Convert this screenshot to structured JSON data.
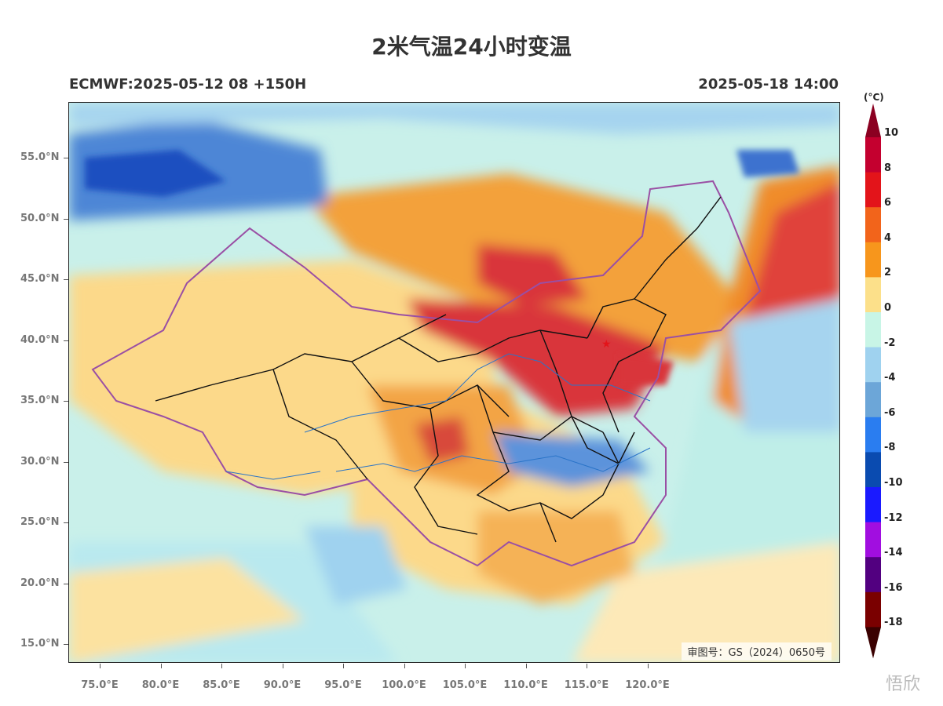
{
  "title": "2米气温24小时变温",
  "subtitle_left": "ECMWF:2025-05-12 08 +150H",
  "subtitle_right": "2025-05-18 14:00",
  "approval_number": "审图号：GS（2024）0650号",
  "watermark": "悟欣",
  "lat_labels": [
    "55.0°N",
    "50.0°N",
    "45.0°N",
    "40.0°N",
    "35.0°N",
    "30.0°N",
    "25.0°N",
    "20.0°N",
    "15.0°N"
  ],
  "lon_labels": [
    "75.0°E",
    "80.0°E",
    "85.0°E",
    "90.0°E",
    "95.0°E",
    "100.0°E",
    "105.0°E",
    "110.0°E",
    "115.0°E",
    "120.0°E"
  ],
  "colorbar": {
    "unit": "(°C)",
    "labels": [
      "10",
      "8",
      "6",
      "4",
      "2",
      "0",
      "-2",
      "-4",
      "-6",
      "-8",
      "-10",
      "-12",
      "-14",
      "-16",
      "-18"
    ],
    "colors": [
      "#8b0021",
      "#c4002f",
      "#e3141a",
      "#f2641b",
      "#f7961c",
      "#fce08a",
      "#c8f5e6",
      "#9fd2ef",
      "#6ca6d8",
      "#2a7df0",
      "#0a4bb0",
      "#1a1aff",
      "#a10ee0",
      "#520080",
      "#7a0000",
      "#3a0000"
    ]
  },
  "map_colors": {
    "warm_strong": "#d9343a",
    "warm": "#f08c2c",
    "warm_light": "#fcd98a",
    "cool_light": "#bff0e6",
    "cool": "#a6d4ef",
    "cold": "#4e86d6",
    "cold_strong": "#1e4fc0",
    "border_purple": "#9a4fa4",
    "province_black": "#111111",
    "river_blue": "#2a74c8"
  }
}
